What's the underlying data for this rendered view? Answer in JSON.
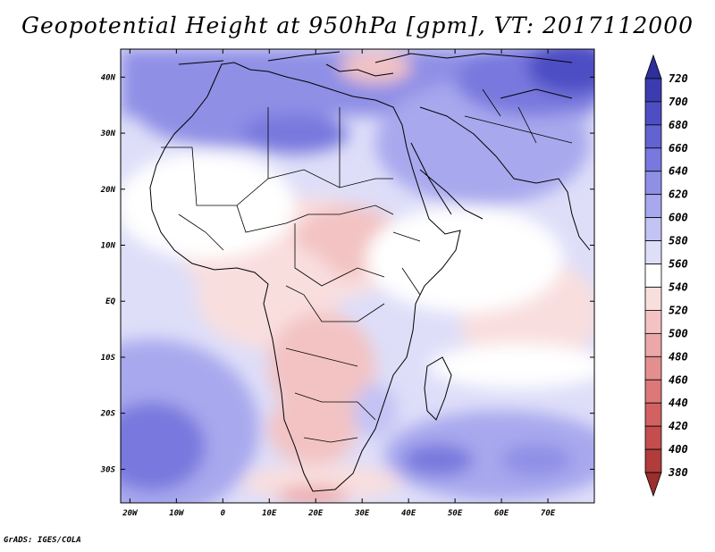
{
  "title": "Geopotential Height at 950hPa [gpm], VT: 2017112000",
  "credit": "GrADS: IGES/COLA",
  "axes": {
    "lat_ticks": [
      {
        "value": 40,
        "label": "40N"
      },
      {
        "value": 30,
        "label": "30N"
      },
      {
        "value": 20,
        "label": "20N"
      },
      {
        "value": 10,
        "label": "10N"
      },
      {
        "value": 0,
        "label": "EQ"
      },
      {
        "value": -10,
        "label": "10S"
      },
      {
        "value": -20,
        "label": "20S"
      },
      {
        "value": -30,
        "label": "30S"
      }
    ],
    "lon_ticks": [
      {
        "value": -20,
        "label": "20W"
      },
      {
        "value": -10,
        "label": "10W"
      },
      {
        "value": 0,
        "label": "0"
      },
      {
        "value": 10,
        "label": "10E"
      },
      {
        "value": 20,
        "label": "20E"
      },
      {
        "value": 30,
        "label": "30E"
      },
      {
        "value": 40,
        "label": "40E"
      },
      {
        "value": 50,
        "label": "50E"
      },
      {
        "value": 60,
        "label": "60E"
      },
      {
        "value": 70,
        "label": "70E"
      }
    ],
    "lon_range": [
      -22,
      80
    ],
    "lat_range": [
      -36,
      45
    ]
  },
  "colorbar": {
    "labels": [
      "720",
      "700",
      "680",
      "660",
      "640",
      "620",
      "600",
      "580",
      "560",
      "540",
      "520",
      "500",
      "480",
      "460",
      "440",
      "420",
      "400",
      "380"
    ],
    "colors": [
      "#2e2e9c",
      "#3c3cb0",
      "#4e4ec4",
      "#6262d2",
      "#7878de",
      "#8f8fe6",
      "#a8a8ee",
      "#c3c3f4",
      "#dedef9",
      "#ffffff",
      "#f9dede",
      "#f3c3c3",
      "#eca8a8",
      "#e48f8f",
      "#dc7878",
      "#d26262",
      "#c44e4e",
      "#b03c3c",
      "#9c2e2e"
    ]
  }
}
